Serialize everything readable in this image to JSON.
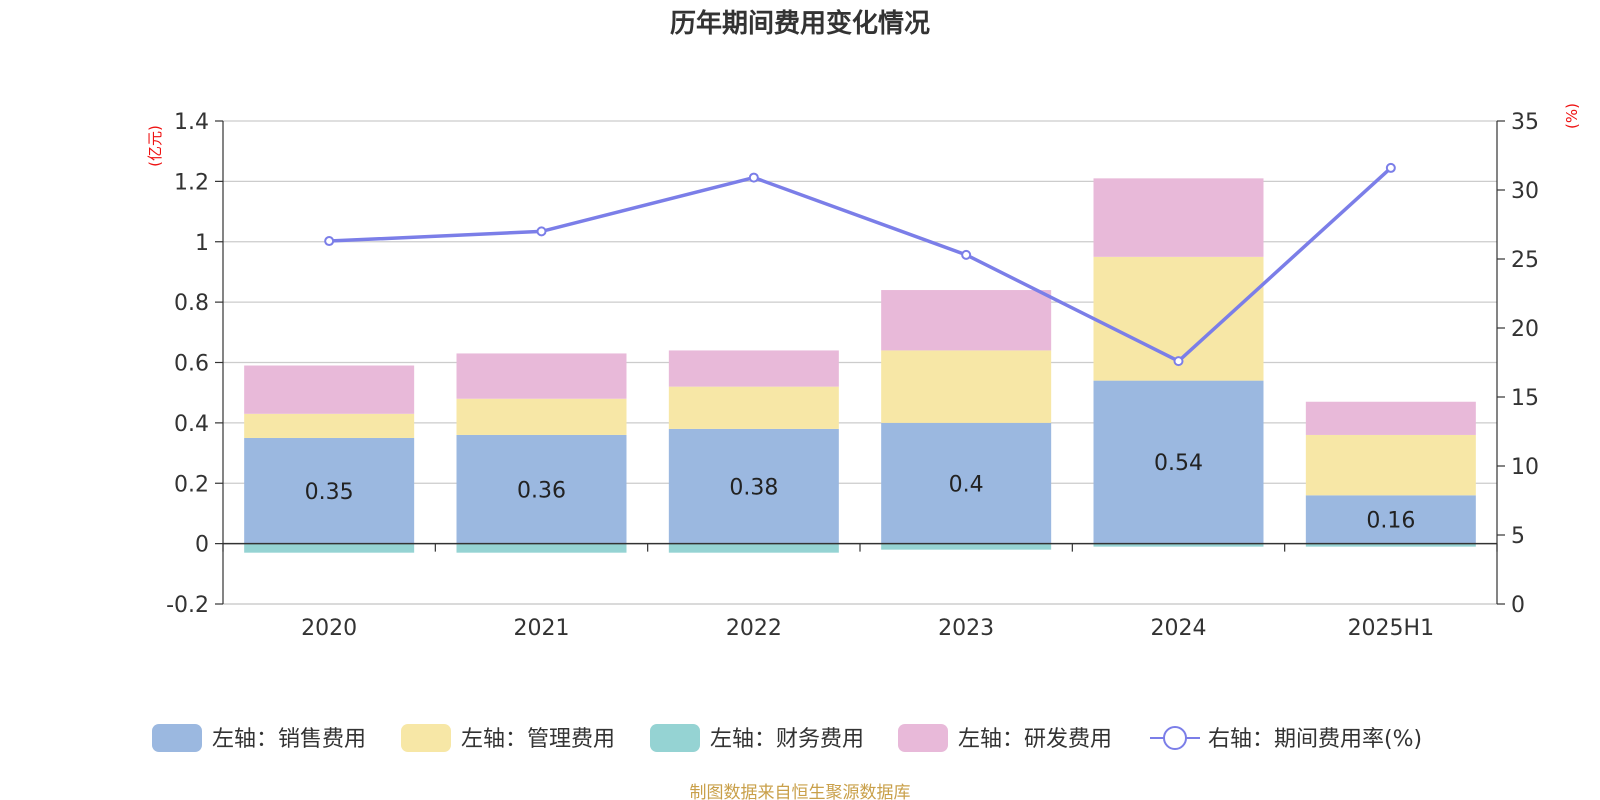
{
  "chart_data": {
    "type": "bar",
    "title": "历年期间费用变化情况",
    "categories": [
      "2020",
      "2021",
      "2022",
      "2023",
      "2024",
      "2025H1"
    ],
    "left_axis": {
      "unit_label": "(亿元)",
      "ylim": [
        -0.2,
        1.4
      ],
      "ticks": [
        "1.4",
        "1.2",
        "1",
        "0.8",
        "0.6",
        "0.4",
        "0.2",
        "0",
        "-0.2"
      ],
      "tick_values": [
        1.4,
        1.2,
        1.0,
        0.8,
        0.6,
        0.4,
        0.2,
        0,
        -0.2
      ]
    },
    "right_axis": {
      "unit_label": "(%)",
      "ylim": [
        0,
        35
      ],
      "ticks": [
        "35",
        "30",
        "25",
        "20",
        "15",
        "10",
        "5",
        "0"
      ],
      "tick_values": [
        35,
        30,
        25,
        20,
        15,
        10,
        5,
        0
      ]
    },
    "grid": true,
    "legend_position": "bottom",
    "series": [
      {
        "name": "左轴：销售费用",
        "type": "bar",
        "stack": "left",
        "color": "#9bb8e0",
        "values": [
          0.35,
          0.36,
          0.38,
          0.4,
          0.54,
          0.16
        ],
        "labels": [
          "0.35",
          "0.36",
          "0.38",
          "0.4",
          "0.54",
          "0.16"
        ]
      },
      {
        "name": "左轴：管理费用",
        "type": "bar",
        "stack": "left",
        "color": "#f7e7a6",
        "values": [
          0.08,
          0.12,
          0.14,
          0.24,
          0.41,
          0.2
        ]
      },
      {
        "name": "左轴：财务费用",
        "type": "bar",
        "stack": "left",
        "color": "#95d3d3",
        "values": [
          -0.03,
          -0.03,
          -0.03,
          -0.02,
          -0.01,
          -0.01
        ]
      },
      {
        "name": "左轴：研发费用",
        "type": "bar",
        "stack": "left",
        "color": "#e8b9d9",
        "values": [
          0.16,
          0.15,
          0.12,
          0.2,
          0.26,
          0.11
        ]
      },
      {
        "name": "右轴：期间费用率(%)",
        "type": "line",
        "axis": "right",
        "color": "#7b7ee8",
        "values": [
          26.3,
          27.0,
          30.9,
          25.3,
          17.6,
          31.6
        ]
      }
    ]
  },
  "footer": {
    "source": "制图数据来自恒生聚源数据库"
  }
}
